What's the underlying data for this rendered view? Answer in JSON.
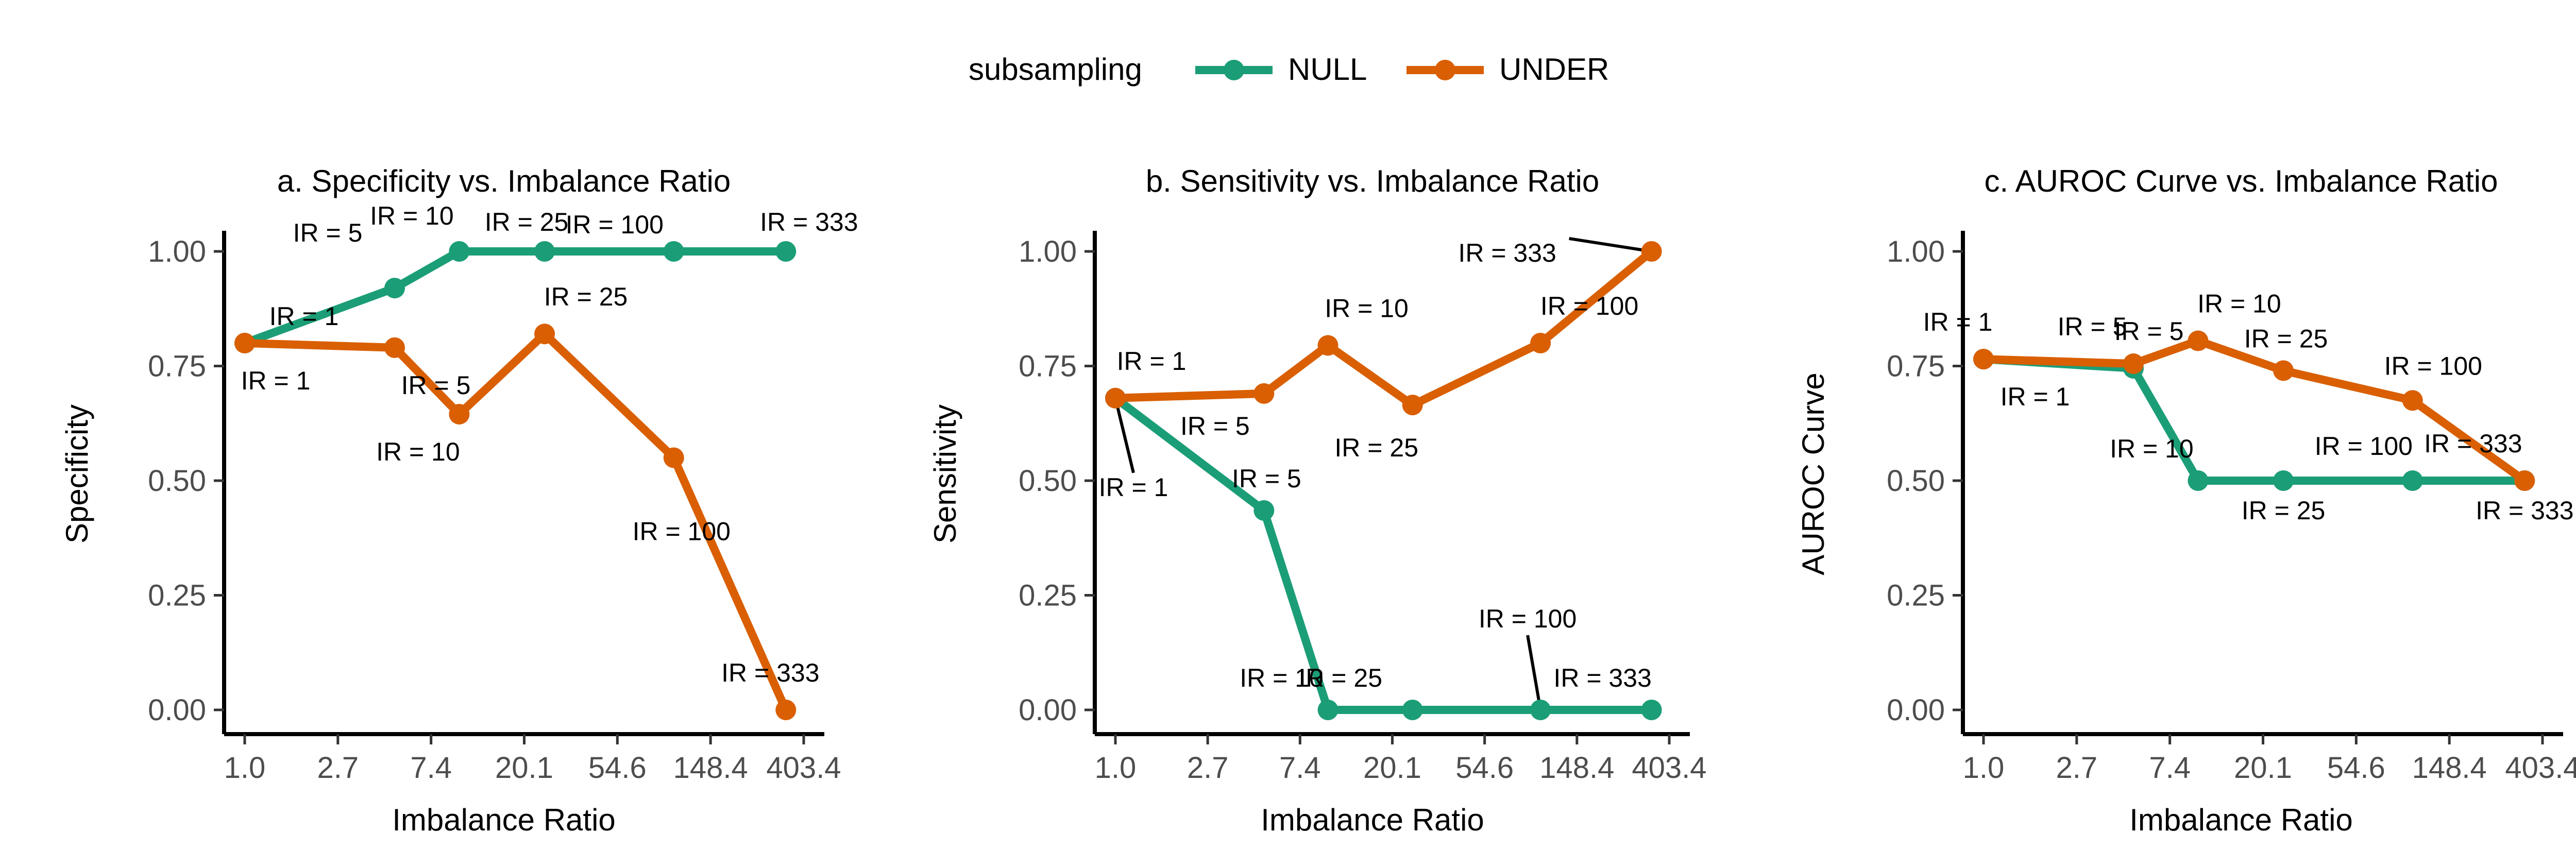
{
  "legend": {
    "title": "subsampling",
    "items": [
      {
        "label": "NULL",
        "color": "#1b9e77"
      },
      {
        "label": "UNDER",
        "color": "#d95f02"
      }
    ]
  },
  "chart_data": [
    {
      "type": "line",
      "title": "a. Specificity vs. Imbalance Ratio",
      "xlabel": "Imbalance Ratio",
      "ylabel": "Specificity",
      "x_scale": "log",
      "x_ticks": [
        "1.0",
        "2.7",
        "7.4",
        "20.1",
        "54.6",
        "148.4",
        "403.4"
      ],
      "y_ticks": [
        "0.00",
        "0.25",
        "0.50",
        "0.75",
        "1.00"
      ],
      "ylim": [
        0,
        1
      ],
      "point_labels": [
        "IR = 1",
        "IR = 5",
        "IR = 10",
        "IR = 25",
        "IR = 100",
        "IR = 333"
      ],
      "x": [
        1,
        5,
        10,
        25,
        100,
        333
      ],
      "series": [
        {
          "name": "NULL",
          "values": [
            0.8,
            0.92,
            1.0,
            1.0,
            1.0,
            1.0
          ]
        },
        {
          "name": "UNDER",
          "values": [
            0.8,
            0.79,
            0.645,
            0.82,
            0.55,
            0.0
          ]
        }
      ]
    },
    {
      "type": "line",
      "title": "b. Sensitivity vs. Imbalance Ratio",
      "xlabel": "Imbalance Ratio",
      "ylabel": "Sensitivity",
      "x_scale": "log",
      "x_ticks": [
        "1.0",
        "2.7",
        "7.4",
        "20.1",
        "54.6",
        "148.4",
        "403.4"
      ],
      "y_ticks": [
        "0.00",
        "0.25",
        "0.50",
        "0.75",
        "1.00"
      ],
      "ylim": [
        0,
        1
      ],
      "point_labels": [
        "IR = 1",
        "IR = 5",
        "IR = 10",
        "IR = 25",
        "IR = 100",
        "IR = 333"
      ],
      "x": [
        1,
        5,
        10,
        25,
        100,
        333
      ],
      "series": [
        {
          "name": "NULL",
          "values": [
            0.68,
            0.435,
            0.0,
            0.0,
            0.0,
            0.0
          ]
        },
        {
          "name": "UNDER",
          "values": [
            0.68,
            0.69,
            0.795,
            0.665,
            0.8,
            1.0
          ]
        }
      ]
    },
    {
      "type": "line",
      "title": "c. AUROC Curve vs. Imbalance Ratio",
      "xlabel": "Imbalance Ratio",
      "ylabel": "AUROC Curve",
      "x_scale": "log",
      "x_ticks": [
        "1.0",
        "2.7",
        "7.4",
        "20.1",
        "54.6",
        "148.4",
        "403.4"
      ],
      "y_ticks": [
        "0.00",
        "0.25",
        "0.50",
        "0.75",
        "1.00"
      ],
      "ylim": [
        0,
        1
      ],
      "point_labels": [
        "IR = 1",
        "IR = 5",
        "IR = 10",
        "IR = 25",
        "IR = 100",
        "IR = 333"
      ],
      "x": [
        1,
        5,
        10,
        25,
        100,
        333
      ],
      "series": [
        {
          "name": "NULL",
          "values": [
            0.765,
            0.745,
            0.5,
            0.5,
            0.5,
            0.5
          ]
        },
        {
          "name": "UNDER",
          "values": [
            0.765,
            0.755,
            0.805,
            0.74,
            0.675,
            0.5
          ]
        }
      ]
    }
  ]
}
